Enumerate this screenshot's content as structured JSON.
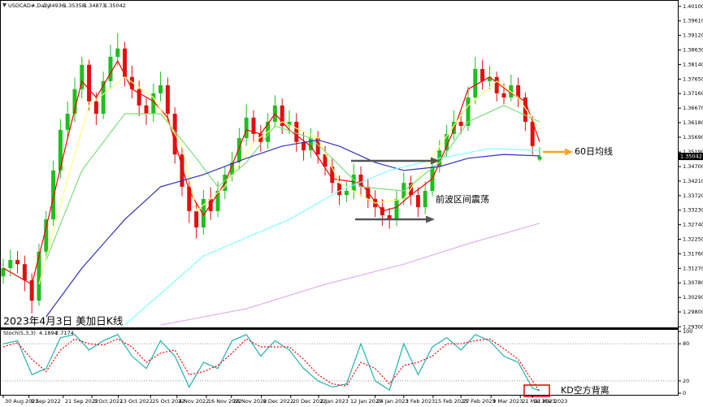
{
  "chart_data": [
    {
      "type": "candlestick",
      "title": "USDCAD#,Daily",
      "annotations": [
        "2023年4月3日 美加日K线",
        "60日均线",
        "前波区间震荡"
      ],
      "up_color": "#1fbf1f",
      "down_color": "#e01010",
      "open": [
        1.31,
        1.3128,
        1.3155,
        1.3141,
        1.3087,
        1.3018,
        1.3183,
        1.3292,
        1.3457,
        1.3594,
        1.3648,
        1.3731,
        1.3813,
        1.369,
        1.3648,
        1.3758,
        1.384,
        1.3868,
        1.3772,
        1.3731,
        1.3676,
        1.3648,
        1.3717,
        1.3744,
        1.3648,
        1.3511,
        1.3402,
        1.332,
        1.3265,
        1.3361,
        1.332,
        1.3388,
        1.3443,
        1.3484,
        1.3566,
        1.3635,
        1.358,
        1.3553,
        1.3621,
        1.3676,
        1.3607,
        1.3621,
        1.3553,
        1.3525,
        1.3566,
        1.3511,
        1.347,
        1.3415,
        1.3374,
        1.3388,
        1.3443,
        1.3402,
        1.3361,
        1.3333,
        1.3306,
        1.3292,
        1.3361,
        1.3415,
        1.3374,
        1.3333,
        1.3388,
        1.347,
        1.3525,
        1.358,
        1.3621,
        1.3607,
        1.3703,
        1.3799,
        1.3758,
        1.3772,
        1.3717,
        1.3703,
        1.3744,
        1.3703,
        1.3621,
        1.34936
      ],
      "high": [
        1.316,
        1.319,
        1.3185,
        1.317,
        1.311,
        1.321,
        1.332,
        1.349,
        1.363,
        1.369,
        1.377,
        1.384,
        1.383,
        1.372,
        1.379,
        1.388,
        1.392,
        1.389,
        1.381,
        1.376,
        1.37,
        1.375,
        1.379,
        1.377,
        1.367,
        1.354,
        1.343,
        1.335,
        1.339,
        1.34,
        1.342,
        1.347,
        1.352,
        1.36,
        1.368,
        1.366,
        1.361,
        1.365,
        1.371,
        1.37,
        1.366,
        1.365,
        1.359,
        1.36,
        1.359,
        1.354,
        1.35,
        1.344,
        1.342,
        1.348,
        1.347,
        1.343,
        1.339,
        1.336,
        1.333,
        1.339,
        1.345,
        1.344,
        1.34,
        1.342,
        1.35,
        1.356,
        1.361,
        1.366,
        1.365,
        1.374,
        1.384,
        1.383,
        1.381,
        1.379,
        1.375,
        1.378,
        1.377,
        1.372,
        1.364,
        1.35358
      ],
      "low": [
        1.3075,
        1.31,
        1.311,
        1.305,
        1.2975,
        1.3,
        1.316,
        1.327,
        1.343,
        1.356,
        1.362,
        1.37,
        1.366,
        1.361,
        1.363,
        1.373,
        1.381,
        1.374,
        1.37,
        1.364,
        1.361,
        1.362,
        1.369,
        1.362,
        1.348,
        1.337,
        1.328,
        1.3228,
        1.324,
        1.329,
        1.33,
        1.336,
        1.342,
        1.346,
        1.354,
        1.355,
        1.352,
        1.353,
        1.36,
        1.358,
        1.358,
        1.352,
        1.349,
        1.35,
        1.348,
        1.344,
        1.338,
        1.334,
        1.335,
        1.336,
        1.337,
        1.333,
        1.33,
        1.327,
        1.326,
        1.327,
        1.334,
        1.334,
        1.33,
        1.331,
        1.337,
        1.345,
        1.35,
        1.356,
        1.358,
        1.359,
        1.368,
        1.373,
        1.373,
        1.369,
        1.368,
        1.369,
        1.367,
        1.359,
        1.351,
        1.34873
      ],
      "close": [
        1.3128,
        1.3155,
        1.3141,
        1.3087,
        1.3018,
        1.3183,
        1.3292,
        1.3457,
        1.3594,
        1.3648,
        1.3731,
        1.3813,
        1.369,
        1.3648,
        1.3758,
        1.384,
        1.3868,
        1.3772,
        1.3731,
        1.3676,
        1.3648,
        1.3717,
        1.3744,
        1.3648,
        1.3511,
        1.3402,
        1.332,
        1.3265,
        1.3361,
        1.332,
        1.3388,
        1.3443,
        1.3484,
        1.3566,
        1.3635,
        1.358,
        1.3553,
        1.3621,
        1.3676,
        1.3607,
        1.3621,
        1.3553,
        1.3525,
        1.3566,
        1.3511,
        1.347,
        1.3415,
        1.3374,
        1.3388,
        1.3443,
        1.3402,
        1.3361,
        1.3333,
        1.3306,
        1.3292,
        1.3361,
        1.3415,
        1.3374,
        1.3333,
        1.3388,
        1.347,
        1.3525,
        1.358,
        1.3621,
        1.3607,
        1.3703,
        1.3799,
        1.3758,
        1.3772,
        1.3717,
        1.3703,
        1.3744,
        1.3703,
        1.3621,
        1.3539,
        1.35042
      ],
      "series": [
        {
          "color": "#ff0000",
          "x": [
            0,
            4,
            6,
            9,
            11,
            13,
            16,
            18,
            21,
            23,
            26,
            28,
            31,
            34,
            36,
            38,
            40,
            43,
            46,
            50,
            53,
            55,
            57,
            60,
            63,
            65,
            68,
            71,
            73,
            75
          ],
          "values": [
            1.3128,
            1.3073,
            1.3265,
            1.3566,
            1.3758,
            1.3703,
            1.3826,
            1.3731,
            1.369,
            1.3635,
            1.3388,
            1.3306,
            1.3415,
            1.3594,
            1.358,
            1.3648,
            1.3594,
            1.3539,
            1.3429,
            1.3415,
            1.332,
            1.3333,
            1.3374,
            1.3429,
            1.3594,
            1.3731,
            1.3772,
            1.3717,
            1.369,
            1.3553
          ]
        },
        {
          "color": "#ffff80",
          "x": [
            5,
            9,
            12,
            17,
            21,
            25,
            27,
            31,
            35,
            39,
            44,
            47,
            52,
            56,
            61,
            65,
            69,
            72,
            75
          ],
          "values": [
            1.3073,
            1.3429,
            1.3676,
            1.3772,
            1.3703,
            1.3539,
            1.332,
            1.3402,
            1.3553,
            1.3621,
            1.3566,
            1.3415,
            1.3347,
            1.3361,
            1.3539,
            1.3676,
            1.3758,
            1.3703,
            1.3594
          ]
        },
        {
          "color": "#7ce07c",
          "x": [
            6,
            11,
            17,
            22,
            27,
            30,
            34,
            38,
            43,
            46,
            50,
            56,
            61,
            65,
            70,
            75
          ],
          "values": [
            1.3155,
            1.3457,
            1.3648,
            1.3648,
            1.3498,
            1.3402,
            1.3484,
            1.3607,
            1.3566,
            1.3498,
            1.3402,
            1.3388,
            1.3484,
            1.3621,
            1.3676,
            1.3621
          ]
        },
        {
          "color": "#3030c0",
          "x": [
            6,
            11,
            17,
            22,
            28,
            34,
            39,
            44,
            47,
            52,
            56,
            61,
            65,
            70,
            75
          ],
          "values": [
            1.2964,
            1.3128,
            1.3292,
            1.3402,
            1.3443,
            1.3498,
            1.3539,
            1.356,
            1.3539,
            1.3484,
            1.3457,
            1.347,
            1.3498,
            1.3511,
            1.3506
          ]
        },
        {
          "color": "#7fffff",
          "x": [
            17,
            28,
            40,
            47,
            54,
            61,
            68,
            75
          ],
          "values": [
            1.2936,
            1.3169,
            1.3292,
            1.3388,
            1.3457,
            1.3498,
            1.3531,
            1.3525
          ]
        },
        {
          "color": "#e0b0f0",
          "x": [
            22,
            34,
            45,
            56,
            65,
            75
          ],
          "values": [
            1.2936,
            1.2991,
            1.3073,
            1.3141,
            1.321,
            1.3279
          ]
        }
      ],
      "xlim": [
        -0.45,
        94.43
      ],
      "ylim": [
        1.2928,
        1.4026
      ],
      "yticks": [
        {
          "value": 1.401,
          "label": "1.40100"
        },
        {
          "value": 1.3961,
          "label": "1.39610"
        },
        {
          "value": 1.3912,
          "label": "1.39120"
        },
        {
          "value": 1.3863,
          "label": "1.38630"
        },
        {
          "value": 1.3814,
          "label": "1.38140"
        },
        {
          "value": 1.3765,
          "label": "1.37650"
        },
        {
          "value": 1.3716,
          "label": "1.37160"
        },
        {
          "value": 1.3667,
          "label": "1.36670"
        },
        {
          "value": 1.3618,
          "label": "1.36180"
        },
        {
          "value": 1.3569,
          "label": "1.35690"
        },
        {
          "value": 1.3519,
          "label": "1.35190"
        },
        {
          "value": 1.347,
          "label": "1.34700"
        },
        {
          "value": 1.3421,
          "label": "1.34210"
        },
        {
          "value": 1.3372,
          "label": "1.33720"
        },
        {
          "value": 1.3323,
          "label": "1.33230"
        },
        {
          "value": 1.3274,
          "label": "1.32740"
        },
        {
          "value": 1.3225,
          "label": "1.32250"
        },
        {
          "value": 1.3176,
          "label": "1.31760"
        },
        {
          "value": 1.3127,
          "label": "1.31270"
        },
        {
          "value": 1.3078,
          "label": "1.30780"
        },
        {
          "value": 1.3029,
          "label": "1.30290"
        },
        {
          "value": 1.298,
          "label": "1.29800"
        },
        {
          "value": 1.293,
          "label": "1.29300"
        }
      ],
      "grid": false
    },
    {
      "type": "line",
      "title": "Stoch(5,3,3)",
      "annotations": [
        "KD空方背离"
      ],
      "series": [
        {
          "color": "#20b2aa",
          "x": [
            0,
            2,
            4,
            6,
            8,
            10,
            12,
            14,
            16,
            18,
            20,
            22,
            24,
            26,
            28,
            30,
            32,
            34,
            36,
            38,
            40,
            42,
            44,
            46,
            48,
            50,
            52,
            54,
            56,
            58,
            60,
            62,
            64,
            66,
            68,
            70,
            72,
            74,
            75
          ],
          "values": [
            80,
            85,
            30,
            40,
            90,
            95,
            70,
            85,
            95,
            60,
            40,
            85,
            60,
            10,
            50,
            40,
            85,
            95,
            60,
            85,
            70,
            40,
            20,
            10,
            15,
            80,
            20,
            5,
            80,
            30,
            75,
            90,
            70,
            95,
            85,
            60,
            50,
            8,
            4.1894
          ]
        },
        {
          "color": "#ff0000",
          "dashed": true,
          "x": [
            0,
            2,
            4,
            6,
            8,
            10,
            12,
            14,
            16,
            18,
            20,
            22,
            24,
            26,
            28,
            30,
            32,
            34,
            36,
            38,
            40,
            42,
            44,
            46,
            48,
            50,
            52,
            54,
            56,
            58,
            60,
            62,
            64,
            66,
            68,
            70,
            72,
            74,
            75
          ],
          "values": [
            75,
            82,
            55,
            35,
            70,
            88,
            80,
            78,
            88,
            75,
            50,
            65,
            70,
            30,
            35,
            45,
            65,
            88,
            75,
            75,
            75,
            55,
            30,
            15,
            12,
            50,
            40,
            15,
            45,
            50,
            60,
            80,
            80,
            85,
            88,
            72,
            55,
            20,
            2.7174
          ]
        }
      ],
      "xlim": [
        -0.45,
        94.43
      ],
      "ylim": [
        -3.9,
        103.9
      ],
      "yticks": [
        0,
        20,
        80,
        100
      ],
      "grid": true,
      "xticks": [
        {
          "value": 0,
          "label": "30 Aug 2022"
        },
        {
          "value": 3.6,
          "label": "9 Sep 2022"
        },
        {
          "value": 8.4,
          "label": "21 Sep 2022"
        },
        {
          "value": 12.4,
          "label": "3 Oct 2022"
        },
        {
          "value": 16.1,
          "label": "13 Oct 2022"
        },
        {
          "value": 20.6,
          "label": "25 Oct 2022"
        },
        {
          "value": 24.3,
          "label": "4 Nov 2022"
        },
        {
          "value": 28.4,
          "label": "16 Nov 2022"
        },
        {
          "value": 31.9,
          "label": "28 Nov 2022"
        },
        {
          "value": 36.1,
          "label": "8 Dec 2022"
        },
        {
          "value": 40.2,
          "label": "20 Dec 2022"
        },
        {
          "value": 44.1,
          "label": "2 Jan 2023"
        },
        {
          "value": 48.3,
          "label": "12 Jan 2023"
        },
        {
          "value": 52,
          "label": "24 Jan 2023"
        },
        {
          "value": 56,
          "label": "3 Feb 2023"
        },
        {
          "value": 60.1,
          "label": "15 Feb 2023"
        },
        {
          "value": 64,
          "label": "27 Feb 2023"
        },
        {
          "value": 68.2,
          "label": "9 Mar 2023"
        },
        {
          "value": 72.3,
          "label": "21 Mar 2023"
        },
        {
          "value": 74,
          "label": "31 Mar 2023"
        }
      ]
    }
  ]
}
